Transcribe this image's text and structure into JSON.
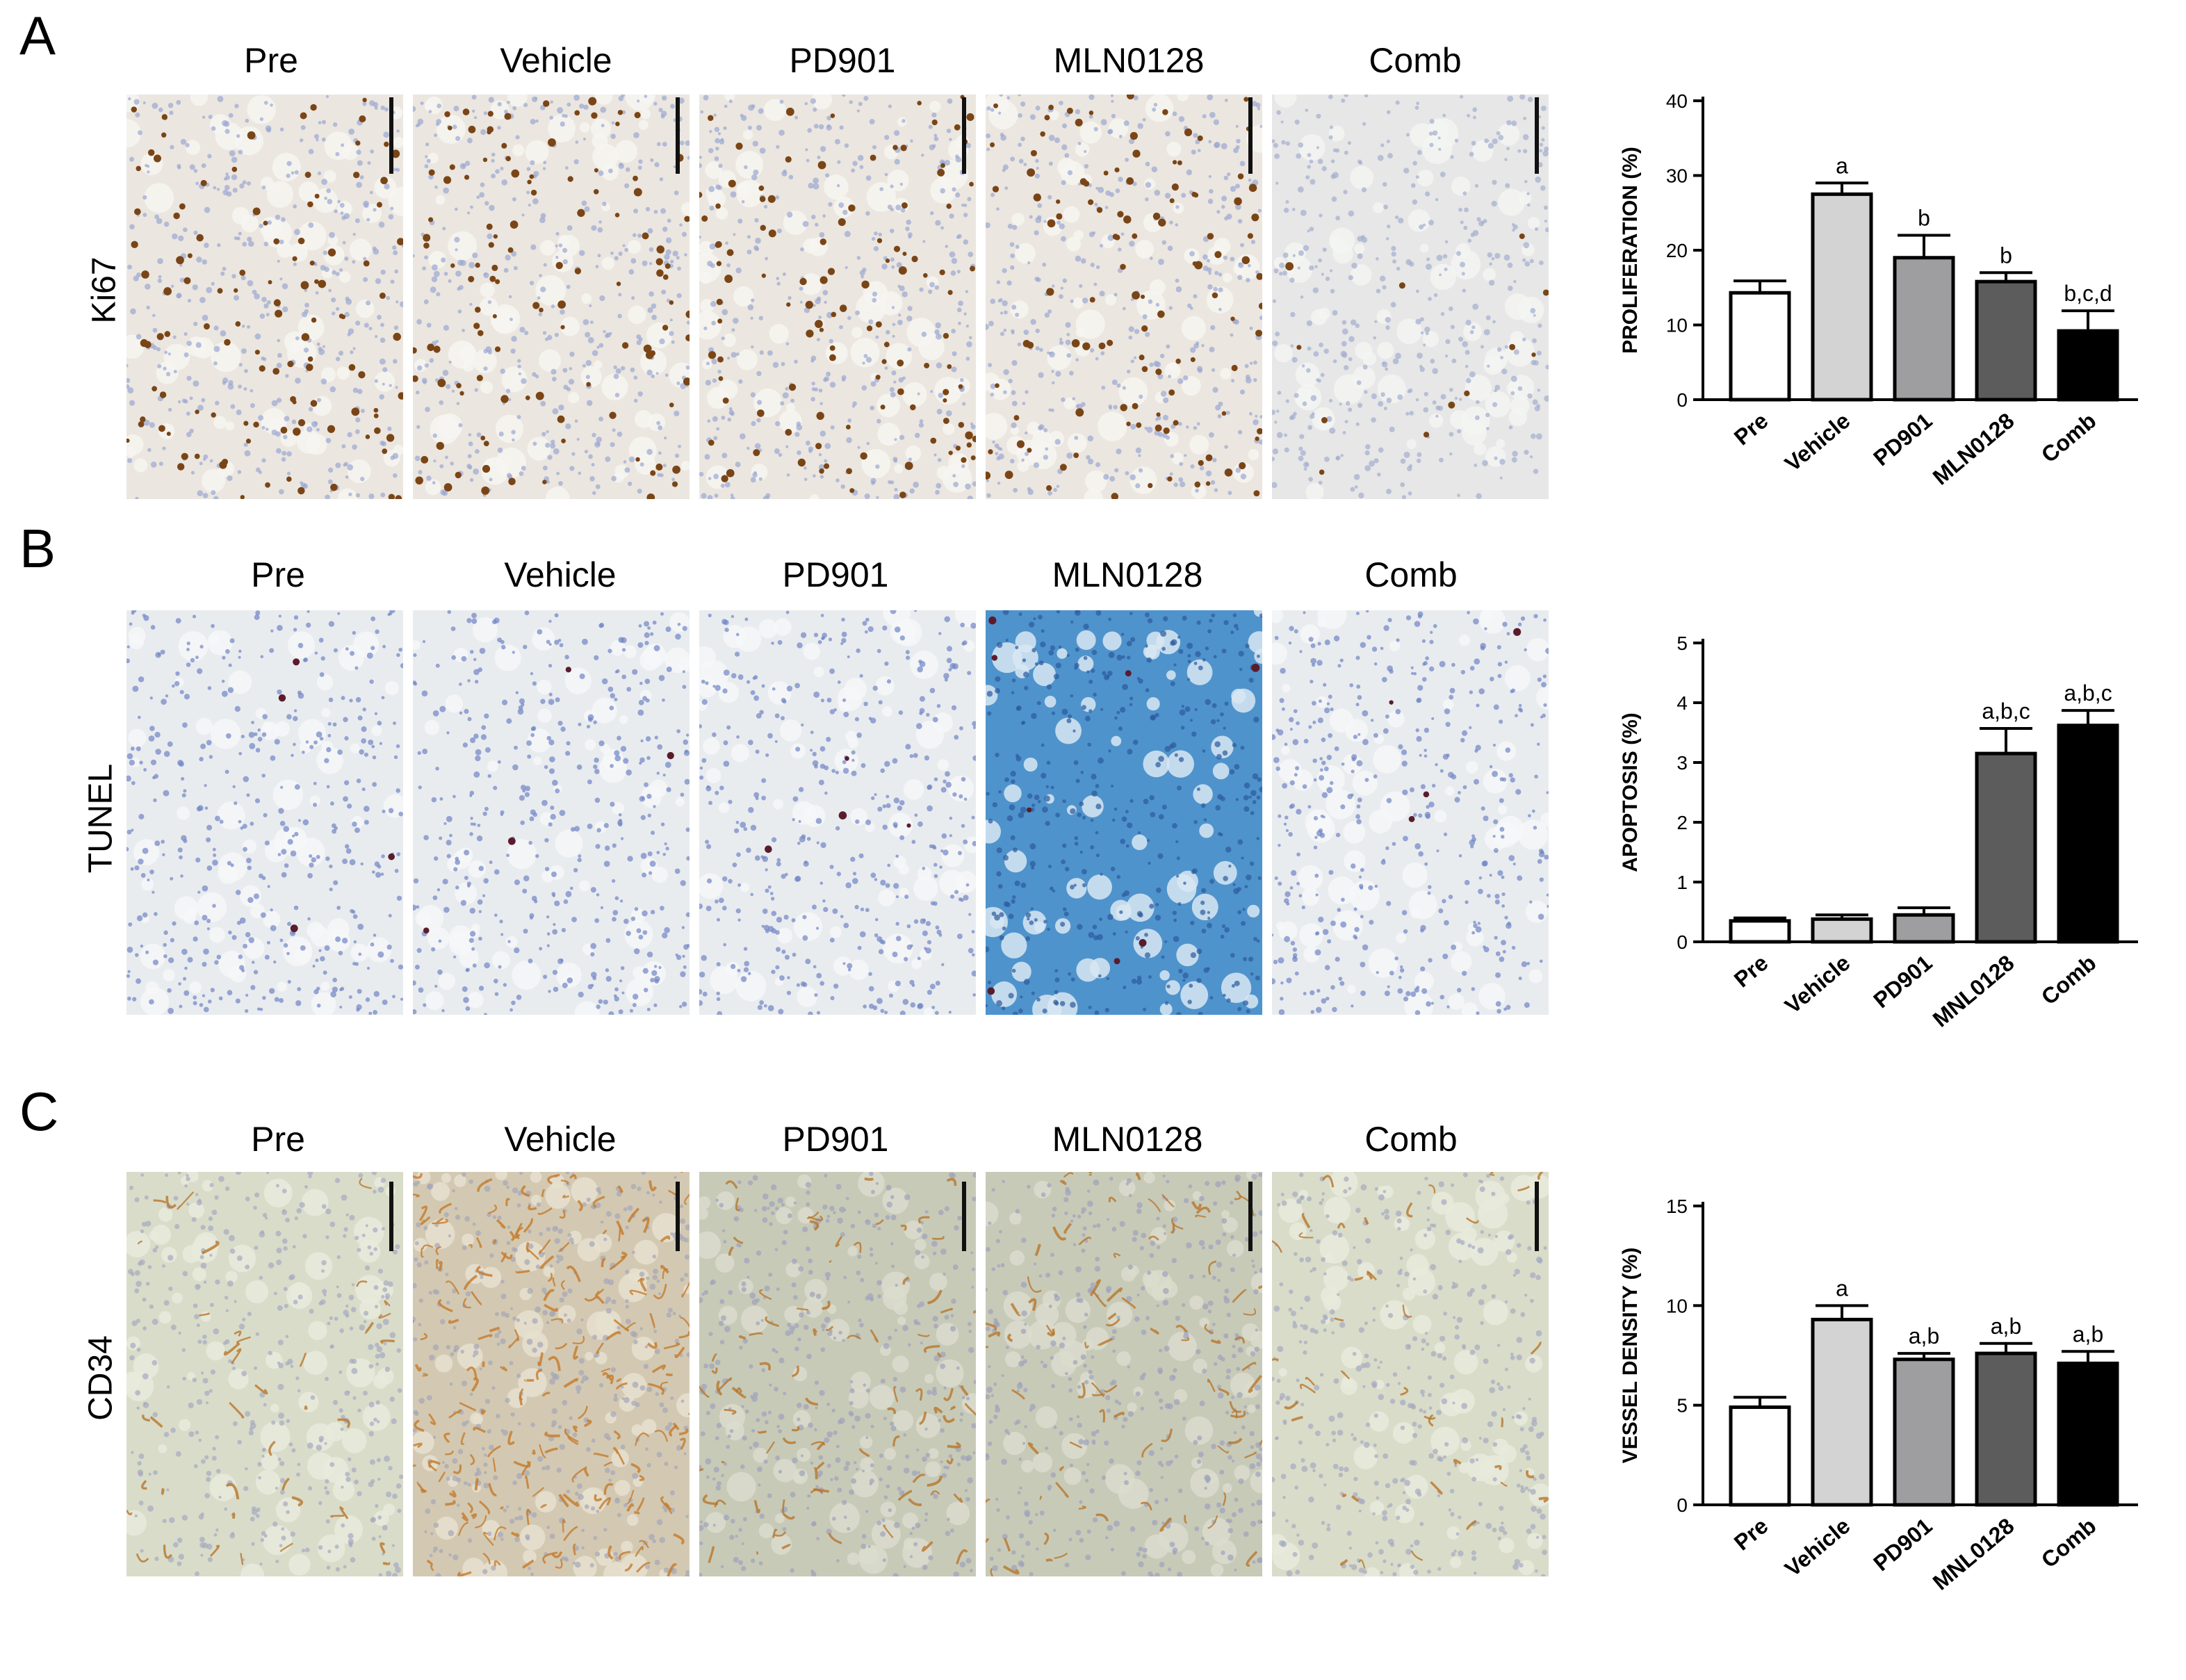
{
  "panels": [
    {
      "letter": "A",
      "stain": "Ki67",
      "columns": [
        "Pre",
        "Vehicle",
        "PD901",
        "MLN0128",
        "Comb"
      ]
    },
    {
      "letter": "B",
      "stain": "TUNEL",
      "columns": [
        "Pre",
        "Vehicle",
        "PD901",
        "MLN0128",
        "Comb"
      ]
    },
    {
      "letter": "C",
      "stain": "CD34",
      "columns": [
        "Pre",
        "Vehicle",
        "PD901",
        "MLN0128",
        "Comb"
      ]
    }
  ],
  "chart_data": [
    {
      "type": "bar",
      "categories": [
        "Pre",
        "Vehicle",
        "PD901",
        "MLN0128",
        "Comb"
      ],
      "values": [
        14.3,
        27.5,
        19.0,
        15.8,
        9.2
      ],
      "errors": [
        1.6,
        1.5,
        3.0,
        1.2,
        2.7
      ],
      "annotations": [
        "",
        "a",
        "b",
        "b",
        "b,c,d"
      ],
      "ylabel": "PROLIFERATION (%)",
      "xlabel": "",
      "ylim": [
        0,
        40
      ],
      "yticks": [
        0,
        10,
        20,
        30,
        40
      ],
      "bar_colors": [
        "#ffffff",
        "#d3d3d3",
        "#9e9ea0",
        "#5c5c5c",
        "#000000"
      ]
    },
    {
      "type": "bar",
      "categories": [
        "Pre",
        "Vehicle",
        "PD901",
        "MNL0128",
        "Comb"
      ],
      "values": [
        0.35,
        0.38,
        0.45,
        3.15,
        3.62
      ],
      "errors": [
        0.05,
        0.07,
        0.12,
        0.42,
        0.25
      ],
      "annotations": [
        "",
        "",
        "",
        "a,b,c",
        "a,b,c"
      ],
      "ylabel": "APOPTOSIS (%)",
      "xlabel": "",
      "ylim": [
        0,
        5
      ],
      "yticks": [
        0,
        1,
        2,
        3,
        4,
        5
      ],
      "bar_colors": [
        "#ffffff",
        "#d3d3d3",
        "#9e9ea0",
        "#5c5c5c",
        "#000000"
      ]
    },
    {
      "type": "bar",
      "categories": [
        "Pre",
        "Vehicle",
        "PD901",
        "MNL0128",
        "Comb"
      ],
      "values": [
        4.9,
        9.3,
        7.3,
        7.6,
        7.1
      ],
      "errors": [
        0.5,
        0.7,
        0.3,
        0.5,
        0.6
      ],
      "annotations": [
        "",
        "a",
        "a,b",
        "a,b",
        "a,b"
      ],
      "ylabel": "VESSEL DENSITY (%)",
      "xlabel": "",
      "ylim": [
        0,
        15
      ],
      "yticks": [
        0,
        5,
        10,
        15
      ],
      "bar_colors": [
        "#ffffff",
        "#d3d3d3",
        "#9e9ea0",
        "#5c5c5c",
        "#000000"
      ]
    }
  ]
}
